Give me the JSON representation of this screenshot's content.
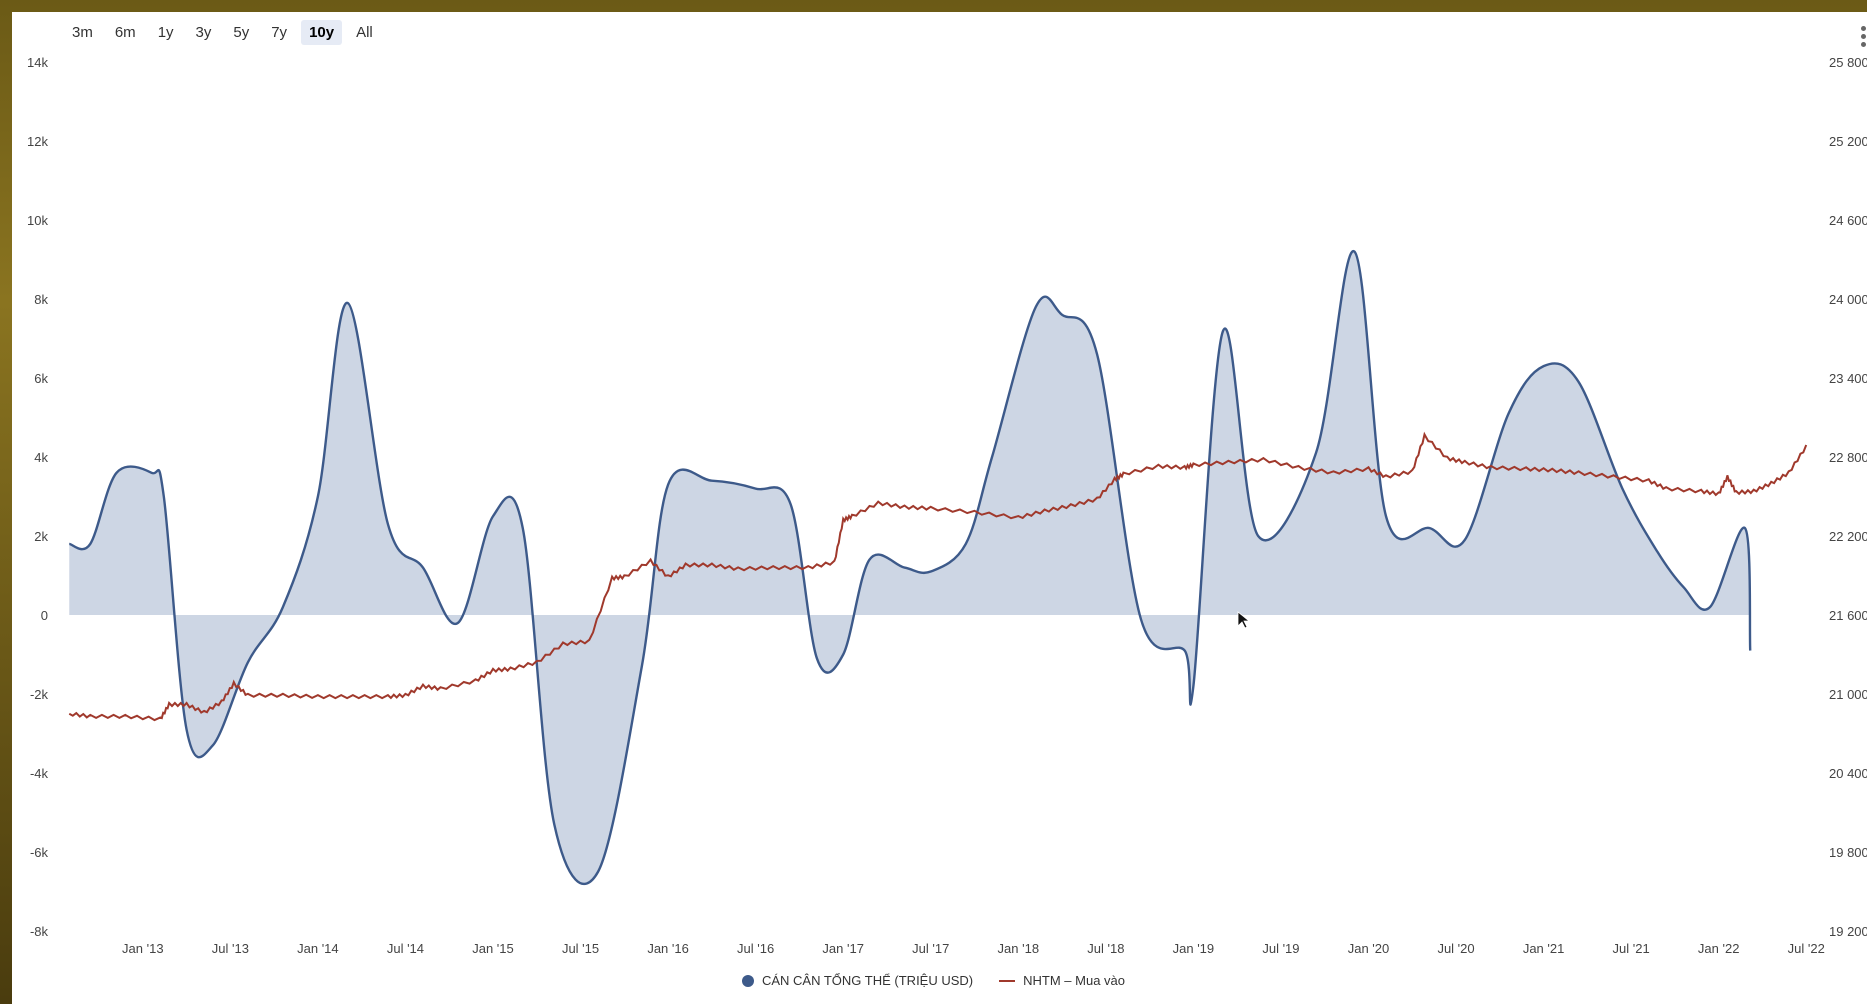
{
  "range_buttons": [
    "3m",
    "6m",
    "1y",
    "3y",
    "5y",
    "7y",
    "10y",
    "All"
  ],
  "active_range": "10y",
  "chart_data": {
    "type": "area",
    "x_tick_labels": [
      "Jan '13",
      "Jul '13",
      "Jan '14",
      "Jul '14",
      "Jan '15",
      "Jul '15",
      "Jan '16",
      "Jul '16",
      "Jan '17",
      "Jul '17",
      "Jan '18",
      "Jul '18",
      "Jan '19",
      "Jul '19",
      "Jan '20",
      "Jul '20",
      "Jan '21",
      "Jul '21",
      "Jan '22",
      "Jul '22"
    ],
    "y_left_ticks": [
      "14k",
      "12k",
      "10k",
      "8k",
      "6k",
      "4k",
      "2k",
      "0",
      "-2k",
      "-4k",
      "-6k",
      "-8k"
    ],
    "y_right_ticks": [
      "25 800",
      "25 200",
      "24 600",
      "24 000",
      "23 400",
      "22 800",
      "22 200",
      "21 600",
      "21 000",
      "20 400",
      "19 800",
      "19 200"
    ],
    "ylim_left": [
      -8000,
      14000
    ],
    "ylim_right": [
      19200,
      25800
    ],
    "xlim": [
      2012.55,
      2022.55
    ],
    "grid": false,
    "legend_position": "bottom-center",
    "series": [
      {
        "name": "CÁN CÂN TỔNG THỂ (TRIỆU USD)",
        "axis": "left",
        "color": "#3d5a8a",
        "fill": "#cdd6e4",
        "x": [
          2012.58,
          2012.7,
          2012.85,
          2013.05,
          2013.12,
          2013.25,
          2013.4,
          2013.6,
          2013.8,
          2014.0,
          2014.17,
          2014.4,
          2014.6,
          2014.8,
          2015.0,
          2015.17,
          2015.35,
          2015.6,
          2015.85,
          2016.0,
          2016.25,
          2016.5,
          2016.7,
          2016.85,
          2017.0,
          2017.15,
          2017.35,
          2017.5,
          2017.7,
          2017.85,
          2018.1,
          2018.25,
          2018.45,
          2018.7,
          2018.95,
          2019.0,
          2019.17,
          2019.37,
          2019.7,
          2019.92,
          2020.1,
          2020.35,
          2020.55,
          2020.8,
          2021.0,
          2021.2,
          2021.45,
          2021.65,
          2021.8,
          2021.95,
          2022.15,
          2022.18
        ],
        "values": [
          1800,
          1800,
          3600,
          3600,
          3000,
          -2900,
          -3300,
          -1200,
          200,
          3000,
          7900,
          2300,
          1200,
          -200,
          2500,
          2200,
          -5300,
          -6500,
          -1300,
          3300,
          3400,
          3200,
          2800,
          -1100,
          -1000,
          1400,
          1200,
          1100,
          1800,
          4000,
          7800,
          7600,
          6600,
          -100,
          -900,
          -1800,
          7200,
          2000,
          4100,
          9200,
          2500,
          2200,
          1900,
          5100,
          6300,
          5900,
          3200,
          1600,
          700,
          200,
          2200,
          -900
        ]
      },
      {
        "name": "NHTM – Mua vào",
        "axis": "right",
        "color": "#a0392c",
        "x": [
          2012.58,
          2012.7,
          2012.9,
          2013.1,
          2013.15,
          2013.25,
          2013.35,
          2013.45,
          2013.52,
          2013.6,
          2013.8,
          2014.0,
          2014.2,
          2014.4,
          2014.5,
          2014.6,
          2014.7,
          2014.9,
          2015.0,
          2015.1,
          2015.25,
          2015.4,
          2015.55,
          2015.68,
          2015.75,
          2015.9,
          2016.0,
          2016.1,
          2016.25,
          2016.4,
          2016.6,
          2016.8,
          2016.95,
          2017.0,
          2017.05,
          2017.2,
          2017.35,
          2017.5,
          2017.75,
          2018.0,
          2018.15,
          2018.3,
          2018.45,
          2018.55,
          2018.6,
          2018.8,
          2018.95,
          2019.0,
          2019.2,
          2019.4,
          2019.6,
          2019.8,
          2020.0,
          2020.1,
          2020.25,
          2020.32,
          2020.45,
          2020.55,
          2020.7,
          2020.9,
          2021.05,
          2021.2,
          2021.4,
          2021.6,
          2021.7,
          2021.9,
          2022.0,
          2022.05,
          2022.1,
          2022.2,
          2022.3,
          2022.4,
          2022.5
        ],
        "values": [
          20850,
          20830,
          20830,
          20810,
          20920,
          20920,
          20860,
          20940,
          21080,
          20990,
          20990,
          20980,
          20980,
          20980,
          20990,
          21060,
          21040,
          21100,
          21180,
          21190,
          21240,
          21380,
          21400,
          21880,
          21890,
          22010,
          21890,
          21980,
          21980,
          21950,
          21960,
          21960,
          22000,
          22320,
          22350,
          22450,
          22420,
          22410,
          22380,
          22340,
          22390,
          22430,
          22480,
          22630,
          22670,
          22730,
          22720,
          22740,
          22760,
          22780,
          22720,
          22680,
          22710,
          22650,
          22690,
          22960,
          22790,
          22760,
          22720,
          22710,
          22700,
          22680,
          22650,
          22620,
          22560,
          22540,
          22520,
          22650,
          22530,
          22540,
          22600,
          22680,
          22880
        ]
      }
    ]
  }
}
